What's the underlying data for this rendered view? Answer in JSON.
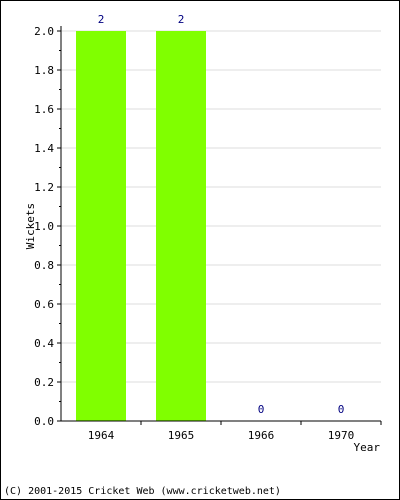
{
  "chart_data": {
    "type": "bar",
    "categories": [
      "1964",
      "1965",
      "1966",
      "1970"
    ],
    "series": [
      {
        "values": [
          2,
          2,
          0,
          0
        ]
      }
    ],
    "data_labels": [
      "2",
      "2",
      "0",
      "0"
    ],
    "xlabel": "Year",
    "ylabel": "Wickets",
    "ylim": [
      0,
      2.0
    ],
    "yticks": [
      "0.0",
      "0.2",
      "0.4",
      "0.6",
      "0.8",
      "1.0",
      "1.2",
      "1.4",
      "1.6",
      "1.8",
      "2.0"
    ],
    "grid": true,
    "bar_color": "#80ff00",
    "label_color": "#000080"
  },
  "footer": {
    "text": "(C) 2001-2015 Cricket Web (www.cricketweb.net)"
  }
}
